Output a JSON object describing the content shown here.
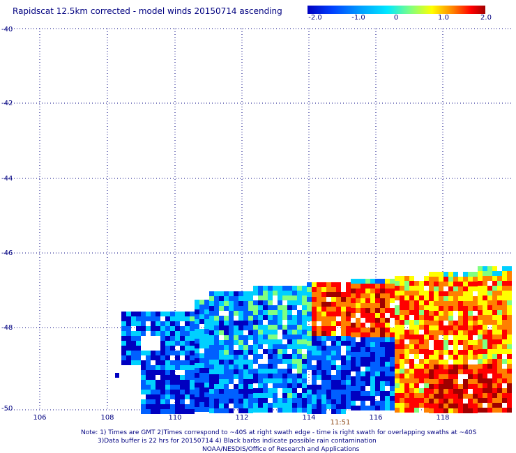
{
  "title": "Rapidscat 12.5km corrected - model winds 20150714 ascending",
  "colorbar": {
    "ticks": [
      "-2.0",
      "-1.0",
      "0",
      "1.0",
      "2.0"
    ],
    "min": -2.0,
    "max": 2.0,
    "colors": [
      "#0000c0",
      "#0060ff",
      "#00d0ff",
      "#80ff80",
      "#ffff00",
      "#ff8000",
      "#ff0000",
      "#a00000"
    ]
  },
  "map": {
    "lat_labels": [
      "-40",
      "-42",
      "-44",
      "-46",
      "-48",
      "-50"
    ],
    "lon_labels": [
      "106",
      "108",
      "110",
      "112",
      "114",
      "116",
      "118"
    ],
    "lat_range": [
      -50,
      -40
    ],
    "lon_range": [
      105,
      120
    ],
    "grid": true
  },
  "time_label": "11:51",
  "notes": [
    "Note: 1) Times are GMT 2)Times correspond to ~40S at right swath edge - time is right swath for overlapping swaths at ~40S",
    "3)Data buffer is 22 hrs for 20150714 4) Black barbs indicate possible rain contamination",
    "NOAA/NESDIS/Office of Research and Applications"
  ]
}
